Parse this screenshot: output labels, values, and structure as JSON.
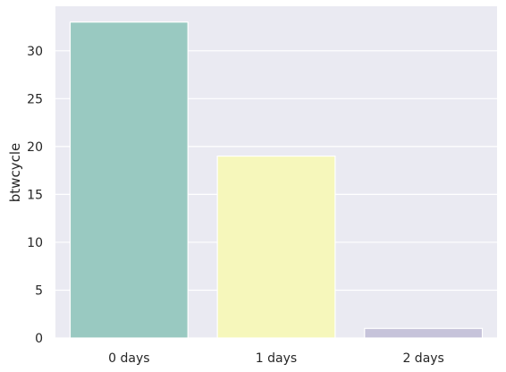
{
  "chart_data": {
    "type": "bar",
    "categories": [
      "0 days",
      "1 days",
      "2 days"
    ],
    "values": [
      33,
      19,
      1
    ],
    "title": "",
    "xlabel": "",
    "ylabel": "btwcycle",
    "ylim": [
      0,
      34.65
    ],
    "yticks": [
      0,
      5,
      10,
      15,
      20,
      25,
      30
    ],
    "grid": true,
    "legend": "none",
    "colors": [
      "#99c9c1",
      "#f6f7bb",
      "#c6c3da"
    ],
    "background": "#eaeaf2"
  }
}
